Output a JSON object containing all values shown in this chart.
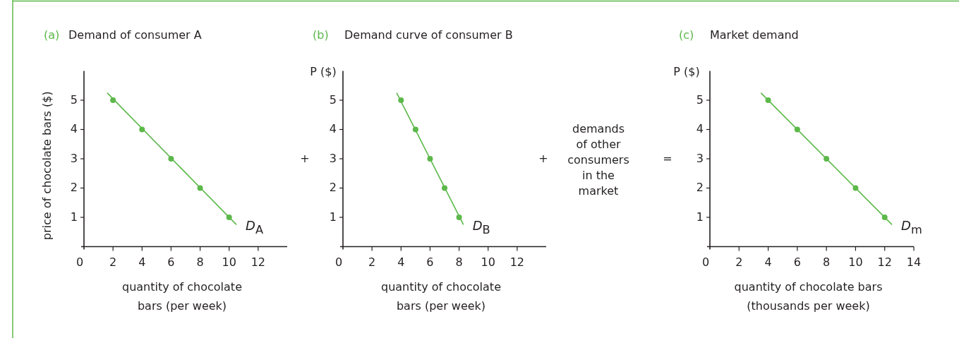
{
  "chart_data": [
    {
      "type": "line",
      "title": "(a) Demand of consumer A",
      "xlabel": "quantity of chocolate bars (per week)",
      "ylabel": "price of chocolate bars ($)",
      "xlim": [
        0,
        14
      ],
      "ylim": [
        0,
        6
      ],
      "xticks": [
        0,
        2,
        4,
        6,
        8,
        10,
        12
      ],
      "yticks": [
        1,
        2,
        3,
        4,
        5
      ],
      "series": [
        {
          "name": "D$_{A}$",
          "type": "line",
          "color": "#5cb84a",
          "x": [
            1.6,
            10.5
          ],
          "values": [
            5.25,
            0.75
          ],
          "marker": "none"
        },
        {
          "type": "scatter",
          "color": "#5cb84a",
          "x": [
            2,
            4,
            6,
            8,
            10
          ],
          "values": [
            5,
            4,
            3,
            2,
            1
          ],
          "marker": "circle"
        }
      ]
    },
    {
      "type": "other",
      "annotations": [
        "+"
      ]
    },
    {
      "type": "line",
      "title": "(b) Demand curve of consumer B",
      "xlabel": "quantity of chocolate bars (per week)",
      "ylabel": "P ($)",
      "xlim": [
        0,
        14
      ],
      "ylim": [
        0,
        6
      ],
      "xticks": [
        0,
        2,
        4,
        6,
        8,
        10,
        12
      ],
      "yticks": [
        1,
        2,
        3,
        4,
        5
      ],
      "series": [
        {
          "name": "D$_{B}$",
          "type": "line",
          "color": "#5cb84a",
          "x": [
            3.7,
            8.3
          ],
          "values": [
            5.25,
            0.75
          ],
          "marker": "none"
        },
        {
          "type": "scatter",
          "color": "#5cb84a",
          "x": [
            4,
            5,
            6,
            7,
            8
          ],
          "values": [
            5,
            4,
            3,
            2,
            1
          ],
          "marker": "circle"
        }
      ]
    },
    {
      "type": "other",
      "annotations": [
        "+",
        "demands of other consumers in the market",
        "="
      ]
    },
    {
      "type": "line",
      "title": "(c) Market demand",
      "xlabel": "quantity of chocolate bars (thousands per week)",
      "ylabel": "P ($)",
      "xlim": [
        0,
        14
      ],
      "ylim": [
        0,
        6
      ],
      "xticks": [
        0,
        2,
        4,
        6,
        8,
        10,
        12,
        14
      ],
      "yticks": [
        1,
        2,
        3,
        4,
        5
      ],
      "series": [
        {
          "name": "D$_{m}$",
          "type": "line",
          "color": "#5cb84a",
          "x": [
            3.5,
            12.5
          ],
          "values": [
            5.25,
            0.75
          ],
          "marker": "none"
        },
        {
          "type": "scatter",
          "color": "#5cb84a",
          "x": [
            4,
            6,
            8,
            10,
            12
          ],
          "values": [
            5,
            4,
            3,
            2,
            1
          ],
          "marker": "circle"
        }
      ]
    }
  ]
}
